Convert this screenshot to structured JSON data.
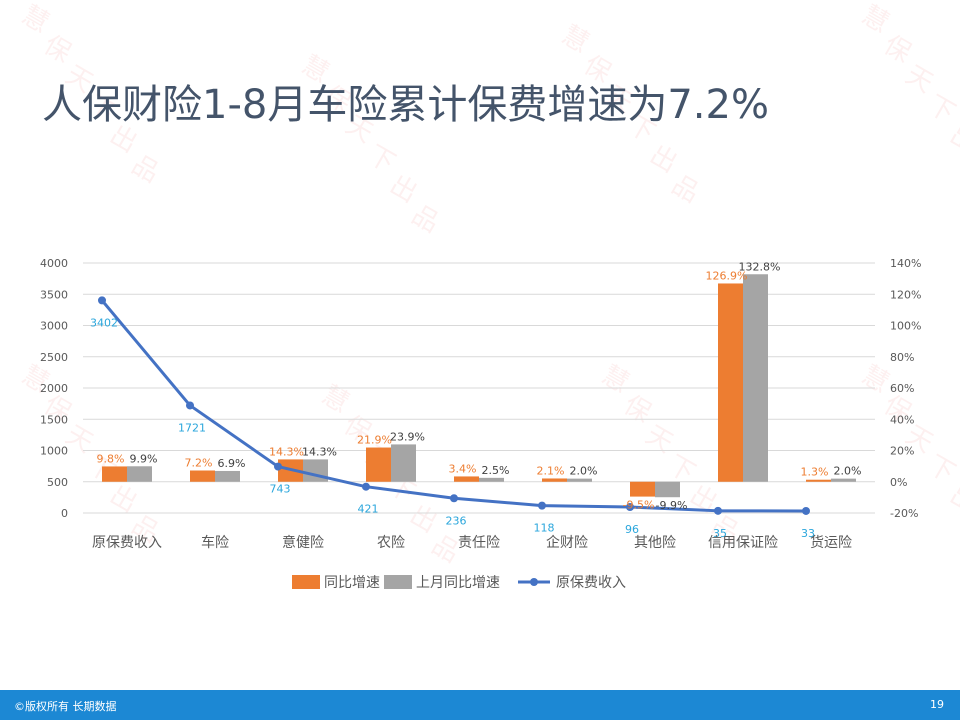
{
  "slide": {
    "title": "人保财险1-8月车险累计保费增速为7.2%",
    "footer_text": "©版权所有 长期数据",
    "page_number": "19",
    "watermark": "慧保天下出品"
  },
  "colors": {
    "title": "#44546a",
    "series_yoy": "#ed7d31",
    "series_prev": "#a5a5a5",
    "series_premium": "#4472c4",
    "premium_label": "#2aa6dc",
    "footer_bg": "#1c88d4"
  },
  "chart_data": {
    "type": "bar+line",
    "categories": [
      "原保费收入",
      "车险",
      "意健险",
      "农险",
      "责任险",
      "企财险",
      "其他险",
      "信用保证险",
      "货运险"
    ],
    "series": [
      {
        "name": "同比增速",
        "type": "bar",
        "axis": "right",
        "values": [
          9.8,
          7.2,
          14.3,
          21.9,
          3.4,
          2.1,
          -9.5,
          126.9,
          1.3
        ],
        "labels": [
          "9.8%",
          "7.2%",
          "14.3%",
          "21.9%",
          "3.4%",
          "2.1%",
          "-9.5%",
          "126.9%",
          "1.3%"
        ]
      },
      {
        "name": "上月同比增速",
        "type": "bar",
        "axis": "right",
        "values": [
          9.9,
          6.9,
          14.3,
          23.9,
          2.5,
          2.0,
          -9.9,
          132.8,
          2.0
        ],
        "labels": [
          "9.9%",
          "6.9%",
          "14.3%",
          "23.9%",
          "2.5%",
          "2.0%",
          "-9.9%",
          "132.8%",
          "2.0%"
        ]
      },
      {
        "name": "原保费收入",
        "type": "line",
        "axis": "left",
        "values": [
          3402,
          1721,
          743,
          421,
          236,
          118,
          96,
          35,
          33
        ],
        "labels": [
          "3402",
          "1721",
          "743",
          "421",
          "236",
          "118",
          "96",
          "35",
          "33"
        ]
      }
    ],
    "left_axis": {
      "min": 0,
      "max": 4000,
      "ticks": [
        "0",
        "500",
        "1000",
        "1500",
        "2000",
        "2500",
        "3000",
        "3500",
        "4000"
      ]
    },
    "right_axis": {
      "min": -20,
      "max": 140,
      "ticks": [
        "-20%",
        "0%",
        "20%",
        "40%",
        "60%",
        "80%",
        "100%",
        "120%",
        "140%"
      ]
    },
    "legend": {
      "position": "bottom",
      "items": [
        "同比增速",
        "上月同比增速",
        "原保费收入"
      ]
    },
    "grid": true
  }
}
